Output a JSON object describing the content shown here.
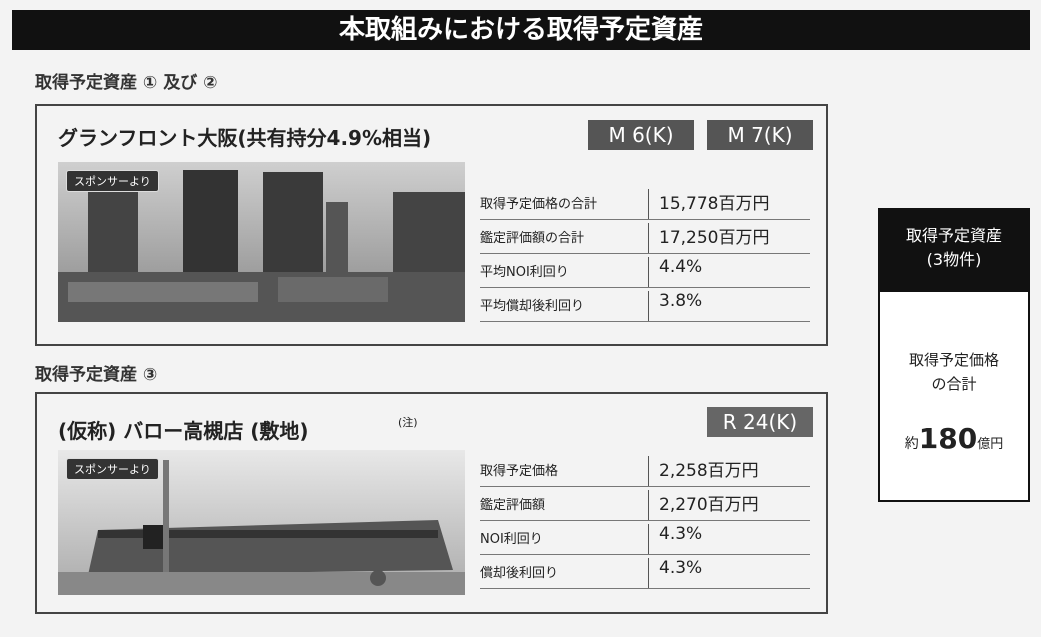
{
  "header": {
    "title": "本取組みにおける取得予定資産"
  },
  "sections": [
    {
      "label": "取得予定資産 ① 及び ②",
      "property": {
        "name": "グランフロント大阪(共有持分4.9%相当)",
        "tags": [
          "M 6(K)",
          "M 7(K)"
        ],
        "photo_label": "スポンサーより",
        "table": [
          [
            "取得予定価格の合計",
            "15,778百万円"
          ],
          [
            "鑑定評価額の合計",
            "17,250百万円"
          ],
          [
            "平均NOI利回り",
            "4.4%"
          ],
          [
            "平均償却後利回り",
            "3.8%"
          ]
        ]
      }
    },
    {
      "label": "取得予定資産 ③",
      "property": {
        "name": "(仮称) バロー高槻店 (敷地)",
        "note": "(注)",
        "tags": [
          "R 24(K)"
        ],
        "photo_label": "スポンサーより",
        "table": [
          [
            "取得予定価格",
            "2,258百万円"
          ],
          [
            "鑑定評価額",
            "2,270百万円"
          ],
          [
            "NOI利回り",
            "4.3%"
          ],
          [
            "償却後利回り",
            "4.3%"
          ]
        ]
      }
    }
  ],
  "summary": {
    "header": [
      "取得予定資産",
      "(3物件)"
    ],
    "body": [
      "取得予定価格",
      "の合計"
    ],
    "total": {
      "prefix": "約",
      "amount": "180",
      "unit": "億円"
    }
  }
}
